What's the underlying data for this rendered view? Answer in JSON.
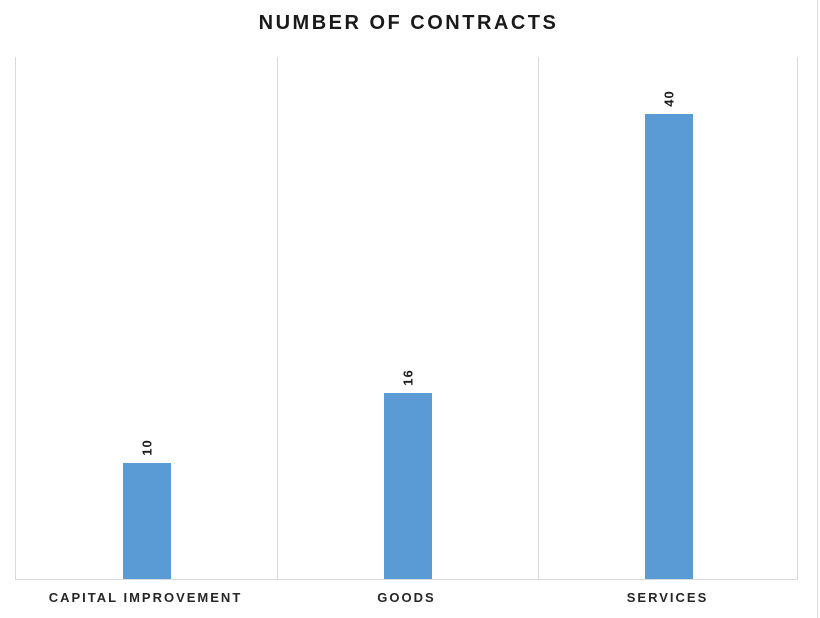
{
  "title": "NUMBER OF CONTRACTS",
  "colors": {
    "bar": "#5b9bd5",
    "gridline": "#d9d9d9",
    "title_text": "#1a1a1a",
    "axis_label_text": "#262626",
    "background": "#ffffff"
  },
  "chart_data": {
    "type": "bar",
    "title": "NUMBER OF CONTRACTS",
    "categories": [
      "CAPITAL IMPROVEMENT",
      "GOODS",
      "SERVICES"
    ],
    "values": [
      10,
      16,
      40
    ],
    "xlabel": "",
    "ylabel": "",
    "ylim": [
      0,
      45
    ],
    "grid": "vertical-category-separators",
    "legend": "none",
    "data_labels": {
      "values": [
        "10",
        "16",
        "40"
      ],
      "rotation_deg": -90,
      "position": "above-bar"
    }
  }
}
